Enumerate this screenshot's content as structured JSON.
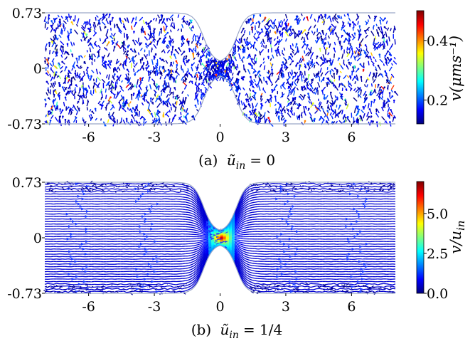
{
  "chart_data": [
    {
      "type": "streamplot",
      "panel": "a",
      "caption_label": "(a)",
      "caption_var": "ũ",
      "caption_sub": "in",
      "caption_rhs": "= 0",
      "xticks": [
        "-6",
        "-3",
        "0",
        "3",
        "6"
      ],
      "xtick_values": [
        -6,
        -3,
        0,
        3,
        6
      ],
      "yticks": [
        "0.73",
        "0",
        "-0.73"
      ],
      "ytick_values": [
        0.73,
        0,
        -0.73
      ],
      "xlim": [
        -8,
        8
      ],
      "ylim": [
        -0.73,
        0.73
      ],
      "channel": {
        "half_width": 0.73,
        "constriction_half_width": 0.08,
        "constriction_center": 0
      },
      "colorbar": {
        "label": "v(μms⁻¹)",
        "ticks": [
          "0.2",
          "0.4"
        ],
        "tick_values": [
          0.2,
          0.4
        ],
        "range": [
          0.12,
          0.5
        ],
        "colormap": "jet"
      }
    },
    {
      "type": "streamplot",
      "panel": "b",
      "caption_label": "(b)",
      "caption_var": "ũ",
      "caption_sub": "in",
      "caption_rhs": "= 1/4",
      "xticks": [
        "-6",
        "-3",
        "0",
        "3",
        "6"
      ],
      "xtick_values": [
        -6,
        -3,
        0,
        3,
        6
      ],
      "yticks": [
        "0.73",
        "0",
        "-0.73"
      ],
      "ytick_values": [
        0.73,
        0,
        -0.73
      ],
      "xlim": [
        -8,
        8
      ],
      "ylim": [
        -0.73,
        0.73
      ],
      "channel": {
        "half_width": 0.73,
        "constriction_half_width": 0.08,
        "constriction_center": 0
      },
      "colorbar": {
        "label": "v/u",
        "label_sub": "in",
        "ticks": [
          "0.0",
          "2.5",
          "5.0"
        ],
        "tick_values": [
          0.0,
          2.5,
          5.0
        ],
        "range": [
          0.0,
          7.0
        ],
        "colormap": "jet"
      }
    }
  ],
  "colors": {
    "wall": "#9aa6c8",
    "dark_blue": "#00008f",
    "blue": "#1e3cff"
  }
}
